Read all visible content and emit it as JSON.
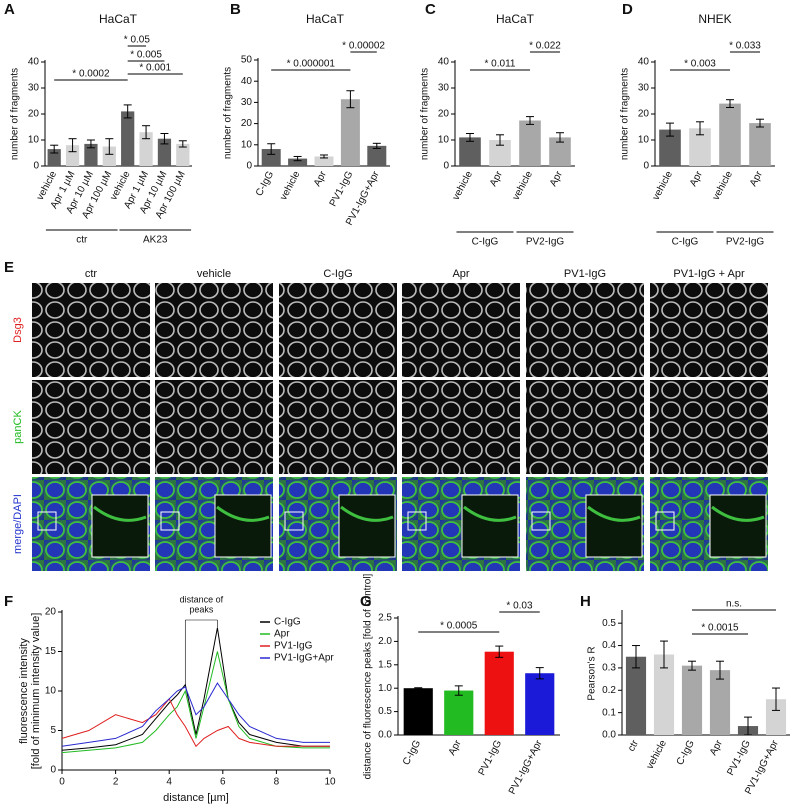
{
  "chart_data": [
    {
      "type": "bar",
      "panel": "A",
      "title": "HaCaT",
      "ylabel": "number of fragments",
      "categories": [
        "vehicle",
        "Apr 1 µM",
        "Apr 10 µM",
        "Apr 100 µM",
        "vehicle",
        "Apr 1 µM",
        "Apr 10 µM",
        "Apr 100 µM"
      ],
      "values": [
        6.5,
        8,
        8.5,
        7.5,
        21,
        13,
        10.5,
        8.5
      ],
      "errors": [
        1.5,
        2.5,
        1.5,
        3,
        2.5,
        2.5,
        2,
        1.2
      ],
      "colors": [
        "#5f5f5f",
        "#d4d4d4",
        "#5f5f5f",
        "#d4d4d4",
        "#5f5f5f",
        "#d4d4d4",
        "#5f5f5f",
        "#d4d4d4"
      ],
      "groups": [
        "ctr",
        "AK23"
      ],
      "ylim": [
        0,
        40
      ],
      "yticks": [
        0,
        10,
        20,
        30,
        40
      ],
      "annotations": [
        "* 0.0002",
        "* 0.05",
        "* 0.005",
        "* 0.001"
      ]
    },
    {
      "type": "bar",
      "panel": "B",
      "title": "HaCaT",
      "ylabel": "number of fragments",
      "categories": [
        "C-IgG",
        "vehicle",
        "Apr",
        "PV1-IgG",
        "PV1-IgG+Apr"
      ],
      "values": [
        8,
        3.5,
        4.5,
        31.5,
        9.5
      ],
      "errors": [
        2.5,
        1,
        0.7,
        4,
        1.2
      ],
      "colors": [
        "#5f5f5f",
        "#5f5f5f",
        "#d4d4d4",
        "#a8a8a8",
        "#5f5f5f"
      ],
      "ylim": [
        0,
        50
      ],
      "yticks": [
        0,
        10,
        20,
        30,
        40,
        50
      ],
      "annotations": [
        "* 0.000001",
        "* 0.00002"
      ]
    },
    {
      "type": "bar",
      "panel": "C",
      "title": "HaCaT",
      "ylabel": "number of fragments",
      "categories": [
        "vehicle",
        "Apr",
        "vehicle",
        "Apr"
      ],
      "values": [
        11,
        10,
        17.5,
        11
      ],
      "errors": [
        1.5,
        2,
        1.5,
        1.8
      ],
      "colors": [
        "#5f5f5f",
        "#d4d4d4",
        "#a8a8a8",
        "#a8a8a8"
      ],
      "groups": [
        "C-IgG",
        "PV2-IgG"
      ],
      "ylim": [
        0,
        40
      ],
      "yticks": [
        0,
        10,
        20,
        30,
        40
      ],
      "annotations": [
        "* 0.011",
        "* 0.022"
      ]
    },
    {
      "type": "bar",
      "panel": "D",
      "title": "NHEK",
      "ylabel": "number of fragments",
      "categories": [
        "vehicle",
        "Apr",
        "vehicle",
        "Apr"
      ],
      "values": [
        14,
        14.5,
        24,
        16.5
      ],
      "errors": [
        2.5,
        2.5,
        1.5,
        1.5
      ],
      "colors": [
        "#5f5f5f",
        "#d4d4d4",
        "#a8a8a8",
        "#a8a8a8"
      ],
      "groups": [
        "C-IgG",
        "PV2-IgG"
      ],
      "ylim": [
        0,
        40
      ],
      "yticks": [
        0,
        10,
        20,
        30,
        40
      ],
      "annotations": [
        "* 0.003",
        "* 0.033"
      ]
    },
    {
      "type": "line",
      "panel": "F",
      "ylabel": [
        "fluorescence intensity",
        "[fold of minimum intensity value]"
      ],
      "xlabel": "distance  [µm]",
      "annotation": [
        "distance of",
        "peaks"
      ],
      "x": [
        0,
        1,
        2,
        3,
        3.5,
        4,
        4.3,
        4.6,
        5,
        5.3,
        5.8,
        6.2,
        6.6,
        7,
        8,
        9,
        10
      ],
      "series": [
        {
          "name": "C-IgG",
          "color": "#000000",
          "values": [
            2.5,
            2.8,
            3.2,
            4.5,
            6.5,
            8.5,
            9.5,
            10.8,
            4.5,
            9,
            18,
            9,
            6,
            4.5,
            3.5,
            3,
            3
          ]
        },
        {
          "name": "Apr",
          "color": "#22bb22",
          "values": [
            2.2,
            2.5,
            2.8,
            3.5,
            5,
            7,
            8,
            10,
            4,
            8,
            15,
            9,
            5.5,
            4,
            3,
            2.8,
            2.8
          ]
        },
        {
          "name": "PV1-IgG",
          "color": "#e02020",
          "values": [
            4,
            5,
            7,
            6,
            7,
            9,
            7,
            5.5,
            3,
            4,
            5,
            5.5,
            4,
            3.5,
            3,
            3,
            3
          ]
        },
        {
          "name": "PV1-IgG+Apr",
          "color": "#2a2ad0",
          "values": [
            3,
            3.5,
            4,
            5.5,
            7.5,
            9,
            10,
            10.5,
            7,
            8,
            11,
            9,
            7,
            5.5,
            4,
            3.5,
            3.5
          ]
        }
      ],
      "xlim": [
        0,
        10
      ],
      "xticks": [
        0,
        2,
        4,
        6,
        8,
        10
      ],
      "ylim": [
        0,
        20
      ],
      "yticks": [
        0,
        5,
        10,
        15,
        20
      ],
      "legend": "upper right"
    },
    {
      "type": "bar",
      "panel": "G",
      "ylabel": "distance of fluorescence peaks [fold of control]",
      "categories": [
        "C-IgG",
        "Apr",
        "PV1-IgG",
        "PV1-IgG+Apr"
      ],
      "values": [
        1.0,
        0.95,
        1.78,
        1.32
      ],
      "errors": [
        0.01,
        0.1,
        0.12,
        0.12
      ],
      "colors": [
        "#000000",
        "#22bb22",
        "#ee1111",
        "#1a1ad8"
      ],
      "ylim": [
        0,
        2.5
      ],
      "yticks": [
        {
          "value": 0,
          "label": "0.0"
        },
        {
          "value": 0.5,
          "label": "0.5"
        },
        {
          "value": 1,
          "label": "1.0"
        },
        {
          "value": 1.5,
          "label": "1.5"
        },
        {
          "value": 2,
          "label": "2.0"
        },
        {
          "value": 2.5,
          "label": "2.5"
        }
      ],
      "annotations": [
        "* 0.0005",
        "* 0.03"
      ]
    },
    {
      "type": "bar",
      "panel": "H",
      "ylabel": "Pearson's R",
      "categories": [
        "ctr",
        "vehicle",
        "C-IgG",
        "Apr",
        "PV1-IgG",
        "PV1-IgG+Apr"
      ],
      "values": [
        0.35,
        0.36,
        0.31,
        0.29,
        0.04,
        0.16
      ],
      "errors": [
        0.05,
        0.06,
        0.02,
        0.04,
        0.04,
        0.05
      ],
      "colors": [
        "#5f5f5f",
        "#d4d4d4",
        "#a8a8a8",
        "#a8a8a8",
        "#5f5f5f",
        "#d4d4d4"
      ],
      "ylim": [
        0,
        0.55
      ],
      "yticks": [
        {
          "value": 0,
          "label": "0.0"
        },
        {
          "value": 0.1,
          "label": "0.1"
        },
        {
          "value": 0.2,
          "label": "0.2"
        },
        {
          "value": 0.3,
          "label": "0.3"
        },
        {
          "value": 0.4,
          "label": "0.4"
        },
        {
          "value": 0.5,
          "label": "0.5"
        }
      ],
      "annotations": [
        "* 0.0015",
        "n.s."
      ]
    }
  ],
  "image_panel": {
    "panel": "E",
    "columns": [
      "ctr",
      "vehicle",
      "C-IgG",
      "Apr",
      "PV1-IgG",
      "PV1-IgG + Apr"
    ],
    "rows": [
      "Dsg3",
      "panCK",
      "merge/DAPI"
    ]
  }
}
